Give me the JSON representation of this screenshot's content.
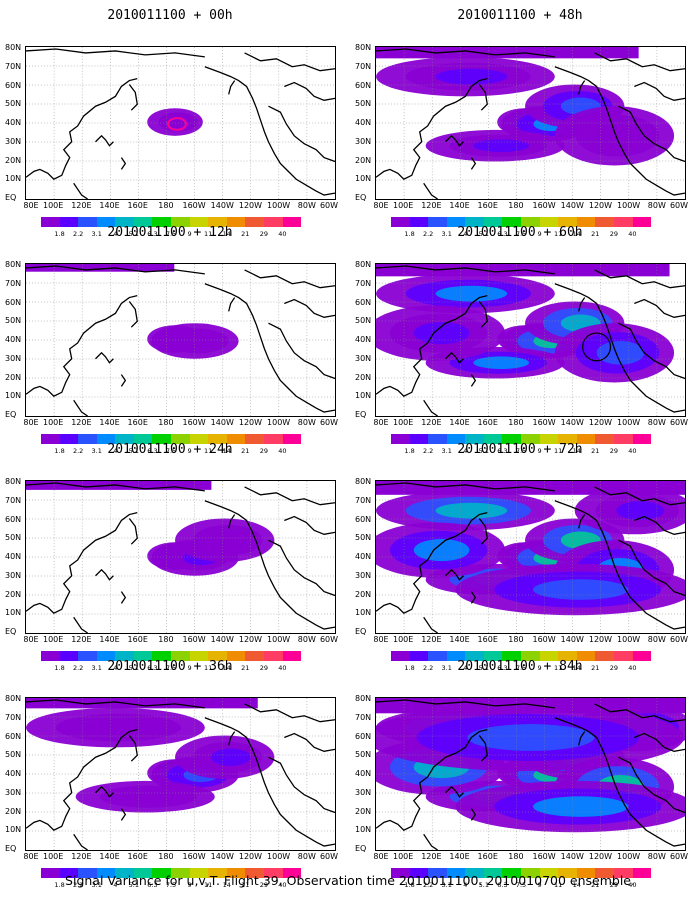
{
  "panels": [
    {
      "title": "2010011100 + 00h",
      "level": 0.05
    },
    {
      "title": "2010011100 + 12h",
      "level": 0.18
    },
    {
      "title": "2010011100 + 24h",
      "level": 0.3
    },
    {
      "title": "2010011100 + 36h",
      "level": 0.45
    },
    {
      "title": "2010011100 + 48h",
      "level": 0.55
    },
    {
      "title": "2010011100 + 60h",
      "level": 0.65
    },
    {
      "title": "2010011100 + 72h",
      "level": 0.8
    },
    {
      "title": "2010011100 + 84h",
      "level": 0.95
    }
  ],
  "y_labels": [
    "80N",
    "70N",
    "60N",
    "50N",
    "40N",
    "30N",
    "20N",
    "10N",
    "EQ"
  ],
  "x_labels": [
    "80E",
    "100E",
    "120E",
    "140E",
    "160E",
    "180",
    "160W",
    "140W",
    "120W",
    "100W",
    "80W",
    "60W"
  ],
  "colorbar_labels": [
    "1.8",
    "2.2",
    "3.1",
    "4",
    "5.1",
    "6.3",
    "7.5",
    "9",
    "11",
    "14",
    "21",
    "29",
    "40"
  ],
  "colorbar_colors": [
    "#8a00d4",
    "#5a00ff",
    "#2a52ff",
    "#008cff",
    "#00b4c8",
    "#00c896",
    "#00d000",
    "#8cd200",
    "#c8d400",
    "#e6b400",
    "#f08c00",
    "#f05a32",
    "#ff3c64",
    "#ff0096"
  ],
  "footer": "Signal Variance for u,v,T. Flight 39. Observation time 2010011100. 2010010700 ensemble."
}
